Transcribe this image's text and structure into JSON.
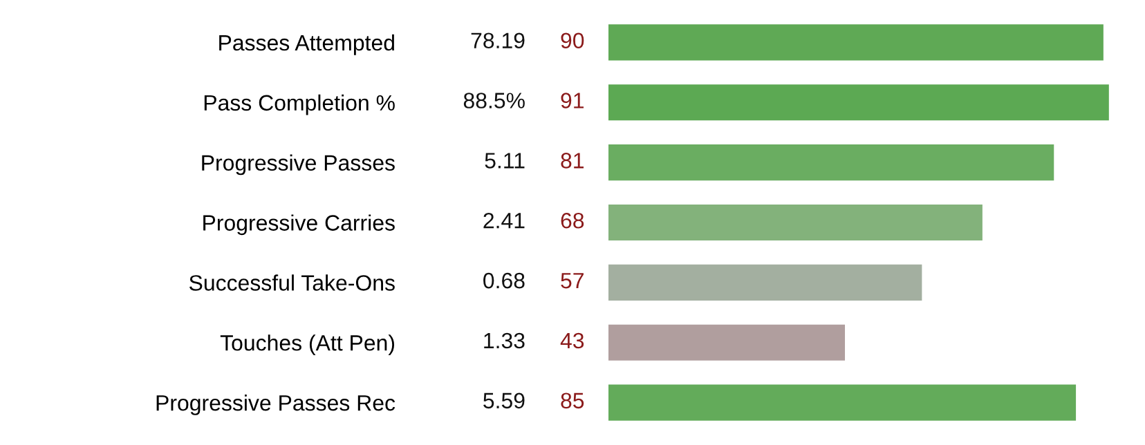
{
  "chart_data": {
    "type": "bar",
    "orientation": "horizontal",
    "categories": [
      "Passes Attempted",
      "Pass Completion %",
      "Progressive Passes",
      "Progressive Carries",
      "Successful Take-Ons",
      "Touches (Att Pen)",
      "Progressive Passes Rec"
    ],
    "values": [
      90,
      91,
      81,
      68,
      57,
      43,
      85
    ],
    "colors": [
      "#5fa955",
      "#5ca953",
      "#6aad61",
      "#83b27b",
      "#a3afa0",
      "#b09e9e",
      "#63ab5a"
    ],
    "data_labels": true,
    "tick_labels": "y",
    "annotations": [
      "78.19",
      "88.5%",
      "5.11",
      "2.41",
      "0.68",
      "1.33",
      "5.59"
    ]
  }
}
